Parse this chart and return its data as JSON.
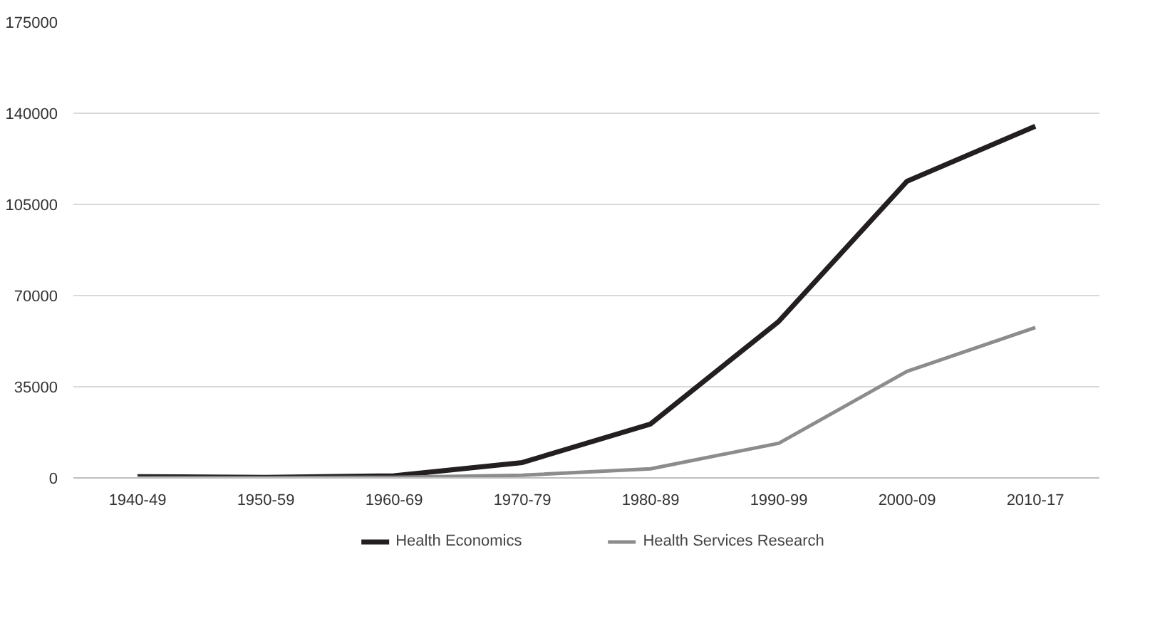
{
  "chart_data": {
    "type": "line",
    "categories": [
      "1940-49",
      "1950-59",
      "1960-69",
      "1970-79",
      "1980-89",
      "1990-99",
      "2000-09",
      "2010-17"
    ],
    "series": [
      {
        "name": "Health Economics",
        "color": "#231f20",
        "values": [
          500,
          200,
          800,
          5900,
          20700,
          60100,
          113900,
          135000
        ]
      },
      {
        "name": "Health Services Research",
        "color": "#8c8c8c",
        "values": [
          100,
          100,
          200,
          1000,
          3500,
          13300,
          40900,
          57700
        ]
      }
    ],
    "ylim": [
      0,
      175000
    ],
    "yticks": [
      0,
      35000,
      70000,
      105000,
      140000,
      175000
    ],
    "grid": "y",
    "legend": "bottom",
    "marker": "none",
    "line_style": "solid"
  }
}
